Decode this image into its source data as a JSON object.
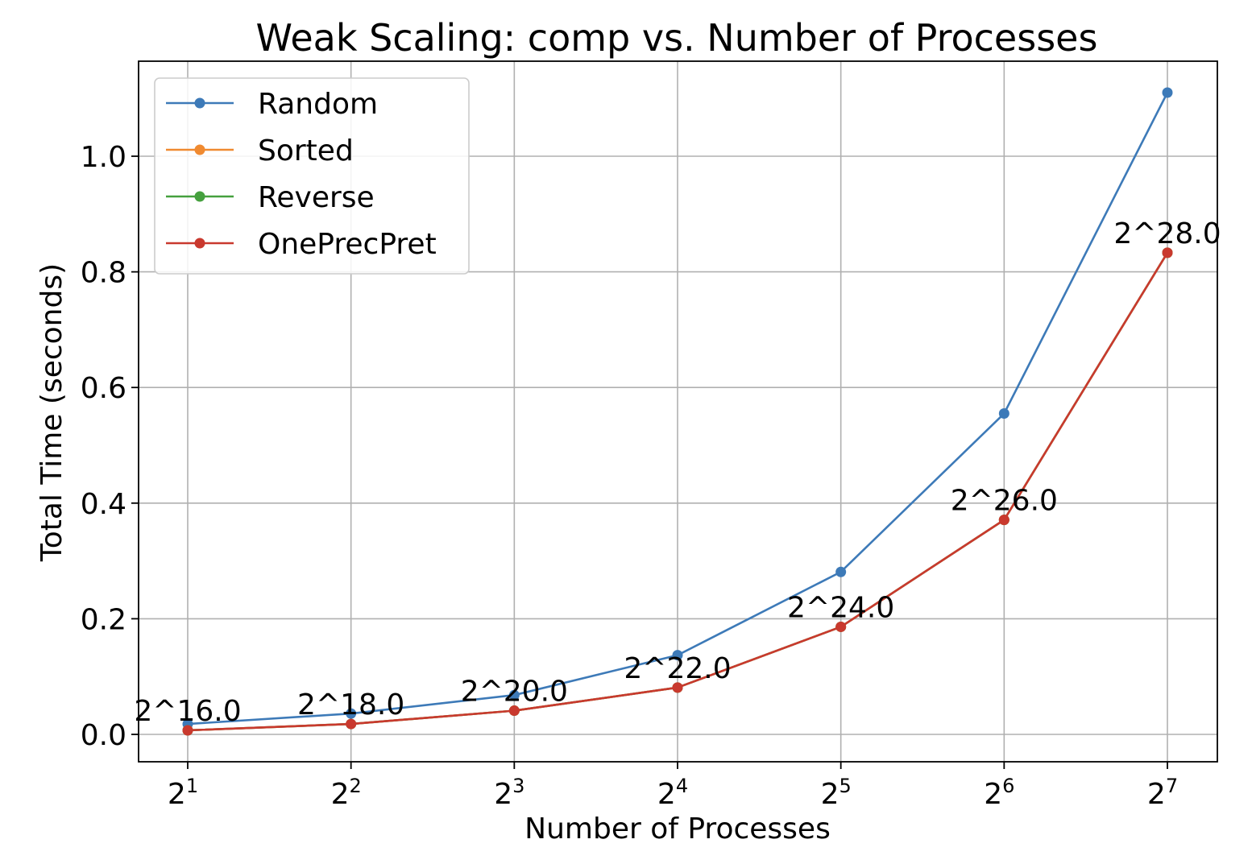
{
  "chart_data": {
    "type": "line",
    "title": "Weak Scaling: comp vs. Number of Processes",
    "xlabel": "Number of Processes",
    "ylabel": "Total Time (seconds)",
    "x_scale": "log2",
    "x": [
      2,
      4,
      8,
      16,
      32,
      64,
      128
    ],
    "x_tick_base": "2",
    "x_tick_exponents": [
      "1",
      "2",
      "3",
      "4",
      "5",
      "6",
      "7"
    ],
    "ylim": [
      -0.05,
      1.165
    ],
    "y_ticks": [
      0.0,
      0.2,
      0.4,
      0.6,
      0.8,
      1.0
    ],
    "y_tick_labels": [
      "0.0",
      "0.2",
      "0.4",
      "0.6",
      "0.8",
      "1.0"
    ],
    "grid": true,
    "legend_position": "top-left",
    "series": [
      {
        "name": "Random",
        "color": "#3d7ab8",
        "values": [
          0.018,
          0.036,
          0.068,
          0.137,
          0.281,
          0.555,
          1.11
        ]
      },
      {
        "name": "Sorted",
        "color": "#f08a30",
        "values": [
          0.007,
          0.018,
          0.041,
          0.081,
          0.186,
          0.371,
          0.833
        ]
      },
      {
        "name": "Reverse",
        "color": "#45a03e",
        "values": [
          0.007,
          0.018,
          0.041,
          0.081,
          0.186,
          0.371,
          0.833
        ]
      },
      {
        "name": "OnePrecPret",
        "color": "#c9392e",
        "values": [
          0.007,
          0.018,
          0.041,
          0.081,
          0.186,
          0.371,
          0.833
        ]
      }
    ],
    "annotations": [
      "2^16.0",
      "2^18.0",
      "2^20.0",
      "2^22.0",
      "2^24.0",
      "2^26.0",
      "2^28.0"
    ]
  }
}
